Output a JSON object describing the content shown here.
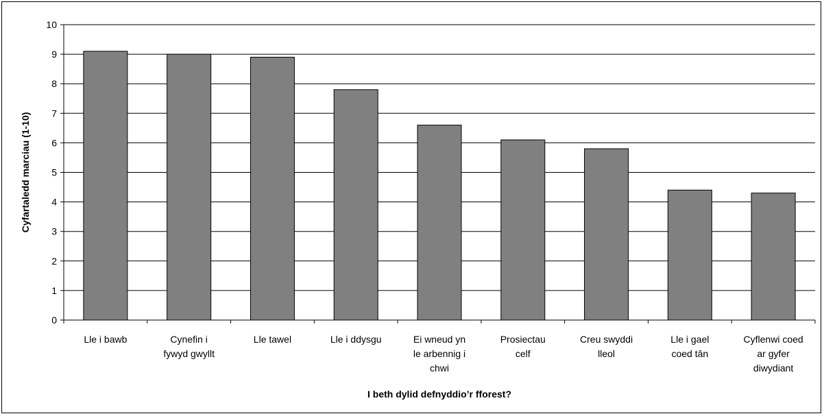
{
  "chart_data": {
    "type": "bar",
    "title": "",
    "xlabel": "I beth dylid defnyddio’r fforest?",
    "ylabel": "Cyfartaledd marciau (1-10)",
    "ylim": [
      0,
      10
    ],
    "yticks": [
      0,
      1,
      2,
      3,
      4,
      5,
      6,
      7,
      8,
      9,
      10
    ],
    "grid": true,
    "categories": [
      [
        "Lle i bawb"
      ],
      [
        "Cynefin i",
        "fywyd gwyllt"
      ],
      [
        "Lle tawel"
      ],
      [
        "Lle i ddysgu"
      ],
      [
        "Ei wneud yn",
        "le arbennig i",
        "chwi"
      ],
      [
        "Prosiectau",
        "celf"
      ],
      [
        "Creu swyddi",
        "lleol"
      ],
      [
        "Lle i gael",
        "coed tân"
      ],
      [
        "Cyflenwi coed",
        "ar gyfer",
        "diwydiant"
      ]
    ],
    "values": [
      9.1,
      9.0,
      8.9,
      7.8,
      6.6,
      6.1,
      5.8,
      4.4,
      4.3
    ],
    "colors": {
      "bar": "#808080",
      "bar_stroke": "#000000",
      "grid": "#000000",
      "axis": "#000000"
    }
  }
}
